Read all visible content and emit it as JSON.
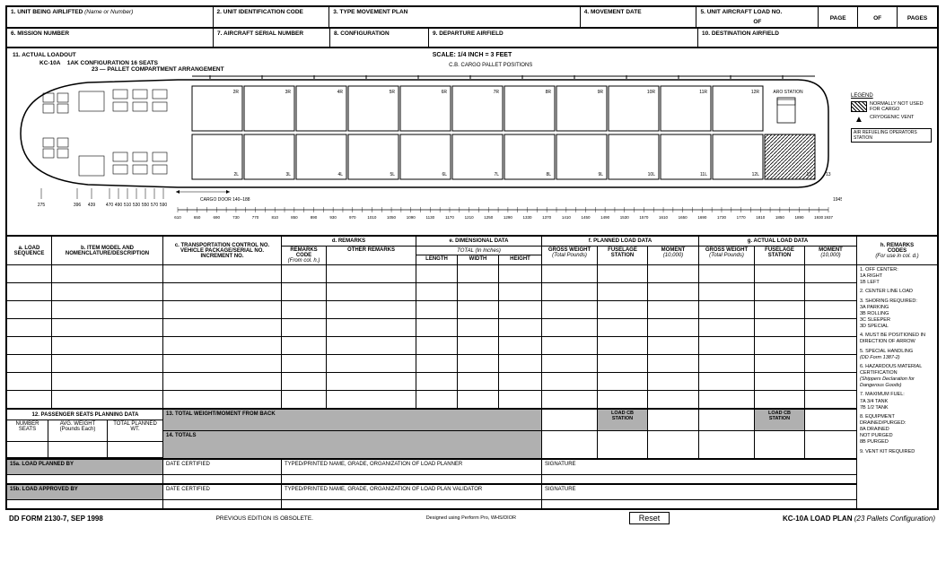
{
  "header": {
    "r1": {
      "c1": {
        "num": "1.",
        "label": "UNIT BEING AIRLIFTED",
        "hint": "(Name or Number)"
      },
      "c2": {
        "num": "2.",
        "label": "UNIT IDENTIFICATION CODE"
      },
      "c3": {
        "num": "3.",
        "label": "TYPE MOVEMENT PLAN"
      },
      "c4": {
        "num": "4.",
        "label": "MOVEMENT DATE"
      },
      "c5": {
        "num": "5.",
        "label": "UNIT AIRCRAFT LOAD NO."
      },
      "c5_of": "OF",
      "page": "PAGE",
      "of": "OF",
      "pages": "PAGES"
    },
    "r2": {
      "c1": {
        "num": "6.",
        "label": "MISSION NUMBER"
      },
      "c2": {
        "num": "7.",
        "label": "AIRCRAFT SERIAL NUMBER"
      },
      "c3": {
        "num": "8.",
        "label": "CONFIGURATION"
      },
      "c4": {
        "num": "9.",
        "label": "DEPARTURE AIRFIELD"
      },
      "c5": {
        "num": "10.",
        "label": "DESTINATION AIRFIELD"
      }
    }
  },
  "diagram": {
    "title": "11. ACTUAL LOADOUT",
    "aircraft": "KC-10A",
    "config1": "1AK CONFIGURATION 16 SEATS",
    "config2": "23 — PALLET COMPARTMENT ARRANGEMENT",
    "scale": "SCALE:  1/4 INCH  =  3 FEET",
    "cb": "C.B. CARGO PALLET POSITIONS",
    "legend_title": "LEGEND",
    "legend1": "NORMALLY NOT USED FOR CARGO",
    "legend2": "CRYOGENIC VENT",
    "legend3": "AIR REFUELING OPERATORS STATION",
    "aro_station": "ARO STATION",
    "cargo_door": "CARGO DOOR 140–188",
    "top_positions": [
      "693",
      "793",
      "902",
      "1011",
      "1120",
      "1229",
      "1338",
      "1447",
      "1556",
      "1665",
      "1774",
      "1883"
    ],
    "pallets_r": [
      "2R",
      "3R",
      "4R",
      "5R",
      "6R",
      "7R",
      "8R",
      "9R",
      "10R",
      "11R",
      "12R"
    ],
    "pallets_l": [
      "2L",
      "3L",
      "4L",
      "5L",
      "6L",
      "7L",
      "8L",
      "9L",
      "10L",
      "11L",
      "12L",
      "13"
    ],
    "nose_ticks": [
      "275",
      "396",
      "439",
      "470",
      "490",
      "510",
      "530",
      "550",
      "570",
      "590"
    ],
    "rear_tick": "1945",
    "ruler_nums": [
      "610",
      "630",
      "650",
      "670",
      "690",
      "710",
      "730",
      "750",
      "770",
      "790",
      "810",
      "830",
      "850",
      "870",
      "890",
      "910",
      "930",
      "950",
      "970",
      "990",
      "1010",
      "1030",
      "1050",
      "1070",
      "1090",
      "1110",
      "1130",
      "1150",
      "1170",
      "1190",
      "1210",
      "1230",
      "1250",
      "1270",
      "1290",
      "1310",
      "1330",
      "1350",
      "1370",
      "1390",
      "1410",
      "1430",
      "1450",
      "1470",
      "1490",
      "1510",
      "1530",
      "1550",
      "1570",
      "1590",
      "1610",
      "1630",
      "1650",
      "1670",
      "1690",
      "1710",
      "1730",
      "1750",
      "1770",
      "1790",
      "1810",
      "1830",
      "1850",
      "1870",
      "1890",
      "1910",
      "1930",
      "1937"
    ]
  },
  "grid": {
    "a": {
      "t1": "a. LOAD",
      "t2": "SEQUENCE"
    },
    "b": {
      "t1": "b. ITEM MODEL AND",
      "t2": "NOMENCLATURE/DESCRIPTION"
    },
    "c": {
      "t1": "c. TRANSPORTATION CONTROL NO.",
      "t2": "VEHICLE PACKAGE/SERIAL NO.",
      "t3": "INCREMENT NO."
    },
    "d": "d. REMARKS",
    "d1": {
      "t1": "REMARKS",
      "t2": "CODE",
      "t3": "(From col. h.)"
    },
    "d2": "OTHER REMARKS",
    "e": "e. DIMENSIONAL DATA",
    "e_total": "TOTAL (In Inches)",
    "e1": "LENGTH",
    "e2": "WIDTH",
    "e3": "HEIGHT",
    "f": "f. PLANNED LOAD DATA",
    "f1": {
      "t1": "GROSS WEIGHT",
      "t2": "(Total Pounds)"
    },
    "f2": {
      "t1": "FUSELAGE",
      "t2": "STATION"
    },
    "f3": {
      "t1": "MOMENT",
      "t2": "(10,000)"
    },
    "g": "g. ACTUAL LOAD DATA",
    "g1": {
      "t1": "GROSS WEIGHT",
      "t2": "(Total Pounds)"
    },
    "g2": {
      "t1": "FUSELAGE",
      "t2": "STATION"
    },
    "g3": {
      "t1": "MOMENT",
      "t2": "(10,000)"
    },
    "h": {
      "t1": "h. REMARKS",
      "t2": "CODES",
      "t3": "(For use in col. d.)"
    }
  },
  "remarks": {
    "r1": "1. OFF CENTER:\n   1A  RIGHT\n   1B  LEFT",
    "r2": "2. CENTER LINE LOAD",
    "r3": "3. SHORING REQUIRED:\n   3A  PARKING\n   3B  ROLLING\n   3C  SLEEPER\n   3D  SPECIAL",
    "r4": "4. MUST BE POSITIONED IN DIRECTION OF ARROW",
    "r5": "5. SPECIAL HANDLING",
    "r5a": "(DD Form 1387-2)",
    "r6": "6. HAZARDOUS MATERIAL CERTIFICATION",
    "r6a": "(Shippers Declaration for Dangerous Goods)",
    "r7": "7. MAXIMUM FUEL:\n   7A  3/4 TANK\n   7B  1/2 TANK",
    "r8": "8. EQUIPMENT DRAINED/PURGED:\n   8A  DRAINED\n        NOT PURGED\n   8B  PURGED",
    "r9": "9. VENT KIT REQUIRED"
  },
  "bottom": {
    "s12": "12. PASSENGER SEATS PLANNING DATA",
    "s12a": "NUMBER\nSEATS",
    "s12b": "AVG. WEIGHT\n(Pounds Each)",
    "s12c": "TOTAL PLANNED\nWT.",
    "s13": "13. TOTAL WEIGHT/MOMENT FROM BACK",
    "s14": "14. TOTALS",
    "loadcb": "LOAD CB\nSTATION",
    "s15a": "15a.  LOAD PLANNED BY",
    "s15b": "15b.  LOAD APPROVED BY",
    "date": "DATE CERTIFIED",
    "typed_a": "TYPED/PRINTED NAME, GRADE, ORGANIZATION OF LOAD PLANNER",
    "typed_b": "TYPED/PRINTED NAME, GRADE, ORGANIZATION OF LOAD PLAN VALIDATOR",
    "sig": "SIGNATURE"
  },
  "footer": {
    "form": "DD FORM 2130-7, SEP 1998",
    "prev": "PREVIOUS EDITION IS OBSOLETE.",
    "design": "Designed using Perform Pro, WHS/DIOR",
    "reset": "Reset",
    "title": "KC-10A LOAD PLAN",
    "subtitle": "(23 Pallets Configuration)"
  }
}
